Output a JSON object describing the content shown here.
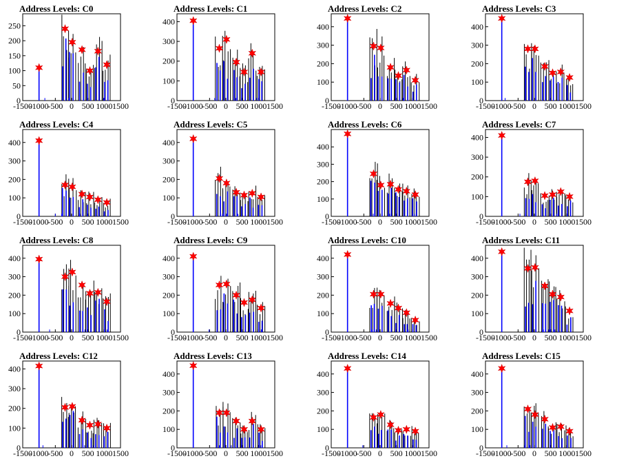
{
  "figure": {
    "colors": {
      "histogram": "#0000ff",
      "spikes": "#000000",
      "markers": "#ff0000",
      "frame": "#000000"
    }
  },
  "chart_data": [
    {
      "type": "histogram",
      "title": "Address Levels: C0",
      "xlim": [
        -1500,
        1500
      ],
      "ylim": [
        0,
        290
      ],
      "yticks": [
        0,
        50,
        100,
        150,
        200,
        250
      ],
      "xticks": [
        -1500,
        -1000,
        -500,
        0,
        500,
        1000,
        1500
      ],
      "peaks": [
        {
          "x": -1000,
          "y": 110
        },
        {
          "x": -200,
          "y": 240
        },
        {
          "x": 20,
          "y": 195
        },
        {
          "x": 320,
          "y": 170
        },
        {
          "x": 560,
          "y": 100
        },
        {
          "x": 810,
          "y": 165
        },
        {
          "x": 1080,
          "y": 120
        }
      ]
    },
    {
      "type": "histogram",
      "title": "Address Levels: C1",
      "xlim": [
        -1500,
        1500
      ],
      "ylim": [
        0,
        440
      ],
      "yticks": [
        0,
        100,
        200,
        300,
        400
      ],
      "xticks": [
        -1500,
        -1000,
        -500,
        0,
        500,
        1000,
        1500
      ],
      "peaks": [
        {
          "x": -1000,
          "y": 405
        },
        {
          "x": -200,
          "y": 265
        },
        {
          "x": 20,
          "y": 310
        },
        {
          "x": 320,
          "y": 195
        },
        {
          "x": 560,
          "y": 145
        },
        {
          "x": 810,
          "y": 240
        },
        {
          "x": 1080,
          "y": 145
        }
      ]
    },
    {
      "type": "histogram",
      "title": "Address Levels: C2",
      "xlim": [
        -1500,
        1500
      ],
      "ylim": [
        0,
        470
      ],
      "yticks": [
        0,
        100,
        200,
        300,
        400
      ],
      "xticks": [
        -1500,
        -1000,
        -500,
        0,
        500,
        1000,
        1500
      ],
      "peaks": [
        {
          "x": -1000,
          "y": 445
        },
        {
          "x": -200,
          "y": 295
        },
        {
          "x": 20,
          "y": 285
        },
        {
          "x": 320,
          "y": 180
        },
        {
          "x": 560,
          "y": 135
        },
        {
          "x": 810,
          "y": 165
        },
        {
          "x": 1080,
          "y": 110
        }
      ]
    },
    {
      "type": "histogram",
      "title": "Address Levels: C3",
      "xlim": [
        -1500,
        1500
      ],
      "ylim": [
        0,
        470
      ],
      "yticks": [
        0,
        100,
        200,
        300,
        400
      ],
      "xticks": [
        -1500,
        -1000,
        -500,
        0,
        500,
        1000,
        1500
      ],
      "peaks": [
        {
          "x": -1000,
          "y": 445
        },
        {
          "x": -200,
          "y": 280
        },
        {
          "x": 20,
          "y": 280
        },
        {
          "x": 320,
          "y": 185
        },
        {
          "x": 560,
          "y": 150
        },
        {
          "x": 810,
          "y": 155
        },
        {
          "x": 1080,
          "y": 125
        }
      ]
    },
    {
      "type": "histogram",
      "title": "Address Levels: C4",
      "xlim": [
        -1500,
        1500
      ],
      "ylim": [
        0,
        470
      ],
      "yticks": [
        0,
        100,
        200,
        300,
        400
      ],
      "xticks": [
        -1500,
        -1000,
        -500,
        0,
        500,
        1000,
        1500
      ],
      "peaks": [
        {
          "x": -1000,
          "y": 410
        },
        {
          "x": -200,
          "y": 170
        },
        {
          "x": 20,
          "y": 160
        },
        {
          "x": 320,
          "y": 120
        },
        {
          "x": 560,
          "y": 105
        },
        {
          "x": 810,
          "y": 90
        },
        {
          "x": 1080,
          "y": 75
        }
      ]
    },
    {
      "type": "histogram",
      "title": "Address Levels: C5",
      "xlim": [
        -1500,
        1500
      ],
      "ylim": [
        0,
        470
      ],
      "yticks": [
        0,
        100,
        200,
        300,
        400
      ],
      "xticks": [
        -1500,
        -1000,
        -500,
        0,
        500,
        1000,
        1500
      ],
      "peaks": [
        {
          "x": -1000,
          "y": 420
        },
        {
          "x": -200,
          "y": 205
        },
        {
          "x": 20,
          "y": 180
        },
        {
          "x": 320,
          "y": 130
        },
        {
          "x": 560,
          "y": 115
        },
        {
          "x": 810,
          "y": 125
        },
        {
          "x": 1080,
          "y": 105
        }
      ]
    },
    {
      "type": "histogram",
      "title": "Address Levels: C6",
      "xlim": [
        -1500,
        1500
      ],
      "ylim": [
        0,
        500
      ],
      "yticks": [
        0,
        100,
        200,
        300,
        400
      ],
      "xticks": [
        -1500,
        -1000,
        -500,
        0,
        500,
        1000,
        1500
      ],
      "peaks": [
        {
          "x": -1000,
          "y": 475
        },
        {
          "x": -200,
          "y": 245
        },
        {
          "x": 20,
          "y": 180
        },
        {
          "x": 320,
          "y": 185
        },
        {
          "x": 560,
          "y": 155
        },
        {
          "x": 810,
          "y": 145
        },
        {
          "x": 1080,
          "y": 125
        }
      ]
    },
    {
      "type": "histogram",
      "title": "Address Levels: C7",
      "xlim": [
        -1500,
        1500
      ],
      "ylim": [
        0,
        440
      ],
      "yticks": [
        0,
        100,
        200,
        300,
        400
      ],
      "xticks": [
        -1500,
        -1000,
        -500,
        0,
        500,
        1000,
        1500
      ],
      "peaks": [
        {
          "x": -1000,
          "y": 410
        },
        {
          "x": -200,
          "y": 175
        },
        {
          "x": 20,
          "y": 180
        },
        {
          "x": 320,
          "y": 105
        },
        {
          "x": 560,
          "y": 110
        },
        {
          "x": 810,
          "y": 125
        },
        {
          "x": 1080,
          "y": 100
        }
      ]
    },
    {
      "type": "histogram",
      "title": "Address Levels: C8",
      "xlim": [
        -1500,
        1500
      ],
      "ylim": [
        0,
        470
      ],
      "yticks": [
        0,
        100,
        200,
        300,
        400
      ],
      "xticks": [
        -1500,
        -1000,
        -500,
        0,
        500,
        1000,
        1500
      ],
      "peaks": [
        {
          "x": -1000,
          "y": 395
        },
        {
          "x": -200,
          "y": 300
        },
        {
          "x": 20,
          "y": 325
        },
        {
          "x": 320,
          "y": 255
        },
        {
          "x": 560,
          "y": 210
        },
        {
          "x": 810,
          "y": 215
        },
        {
          "x": 1080,
          "y": 165
        }
      ]
    },
    {
      "type": "histogram",
      "title": "Address Levels: C9",
      "xlim": [
        -1500,
        1500
      ],
      "ylim": [
        0,
        470
      ],
      "yticks": [
        0,
        100,
        200,
        300,
        400
      ],
      "xticks": [
        -1500,
        -1000,
        -500,
        0,
        500,
        1000,
        1500
      ],
      "peaks": [
        {
          "x": -1000,
          "y": 410
        },
        {
          "x": -200,
          "y": 255
        },
        {
          "x": 20,
          "y": 260
        },
        {
          "x": 320,
          "y": 200
        },
        {
          "x": 560,
          "y": 160
        },
        {
          "x": 810,
          "y": 175
        },
        {
          "x": 1080,
          "y": 130
        }
      ]
    },
    {
      "type": "histogram",
      "title": "Address Levels: C10",
      "xlim": [
        -1500,
        1500
      ],
      "ylim": [
        0,
        470
      ],
      "yticks": [
        0,
        100,
        200,
        300,
        400
      ],
      "xticks": [
        -1500,
        -1000,
        -500,
        0,
        500,
        1000,
        1500
      ],
      "peaks": [
        {
          "x": -1000,
          "y": 420
        },
        {
          "x": -200,
          "y": 205
        },
        {
          "x": 20,
          "y": 205
        },
        {
          "x": 320,
          "y": 155
        },
        {
          "x": 560,
          "y": 130
        },
        {
          "x": 810,
          "y": 105
        },
        {
          "x": 1080,
          "y": 65
        }
      ]
    },
    {
      "type": "histogram",
      "title": "Address Levels: C11",
      "xlim": [
        -1500,
        1500
      ],
      "ylim": [
        0,
        470
      ],
      "yticks": [
        0,
        100,
        200,
        300,
        400
      ],
      "xticks": [
        -1500,
        -1000,
        -500,
        0,
        500,
        1000,
        1500
      ],
      "peaks": [
        {
          "x": -1000,
          "y": 435
        },
        {
          "x": -200,
          "y": 345
        },
        {
          "x": 20,
          "y": 350
        },
        {
          "x": 320,
          "y": 250
        },
        {
          "x": 560,
          "y": 205
        },
        {
          "x": 810,
          "y": 190
        },
        {
          "x": 1080,
          "y": 115
        }
      ]
    },
    {
      "type": "histogram",
      "title": "Address Levels: C12",
      "xlim": [
        -1500,
        1500
      ],
      "ylim": [
        0,
        440
      ],
      "yticks": [
        0,
        100,
        200,
        300,
        400
      ],
      "xticks": [
        -1500,
        -1000,
        -500,
        0,
        500,
        1000,
        1500
      ],
      "peaks": [
        {
          "x": -1000,
          "y": 415
        },
        {
          "x": -200,
          "y": 205
        },
        {
          "x": 20,
          "y": 210
        },
        {
          "x": 320,
          "y": 140
        },
        {
          "x": 560,
          "y": 115
        },
        {
          "x": 810,
          "y": 120
        },
        {
          "x": 1080,
          "y": 100
        }
      ]
    },
    {
      "type": "histogram",
      "title": "Address Levels: C13",
      "xlim": [
        -1500,
        1500
      ],
      "ylim": [
        0,
        470
      ],
      "yticks": [
        0,
        100,
        200,
        300,
        400
      ],
      "xticks": [
        -1500,
        -1000,
        -500,
        0,
        500,
        1000,
        1500
      ],
      "peaks": [
        {
          "x": -1000,
          "y": 445
        },
        {
          "x": -200,
          "y": 190
        },
        {
          "x": 20,
          "y": 190
        },
        {
          "x": 320,
          "y": 145
        },
        {
          "x": 560,
          "y": 100
        },
        {
          "x": 810,
          "y": 145
        },
        {
          "x": 1080,
          "y": 100
        }
      ]
    },
    {
      "type": "histogram",
      "title": "Address Levels: C14",
      "xlim": [
        -1500,
        1500
      ],
      "ylim": [
        0,
        470
      ],
      "yticks": [
        0,
        100,
        200,
        300,
        400
      ],
      "xticks": [
        -1500,
        -1000,
        -500,
        0,
        500,
        1000,
        1500
      ],
      "peaks": [
        {
          "x": -1000,
          "y": 430
        },
        {
          "x": -200,
          "y": 165
        },
        {
          "x": 20,
          "y": 180
        },
        {
          "x": 320,
          "y": 125
        },
        {
          "x": 560,
          "y": 95
        },
        {
          "x": 810,
          "y": 100
        },
        {
          "x": 1080,
          "y": 90
        }
      ]
    },
    {
      "type": "histogram",
      "title": "Address Levels: C15",
      "xlim": [
        -1500,
        1500
      ],
      "ylim": [
        0,
        470
      ],
      "yticks": [
        0,
        100,
        200,
        300,
        400
      ],
      "xticks": [
        -1500,
        -1000,
        -500,
        0,
        500,
        1000,
        1500
      ],
      "peaks": [
        {
          "x": -1000,
          "y": 430
        },
        {
          "x": -200,
          "y": 210
        },
        {
          "x": 20,
          "y": 180
        },
        {
          "x": 320,
          "y": 155
        },
        {
          "x": 560,
          "y": 110
        },
        {
          "x": 810,
          "y": 115
        },
        {
          "x": 1080,
          "y": 90
        }
      ]
    }
  ]
}
